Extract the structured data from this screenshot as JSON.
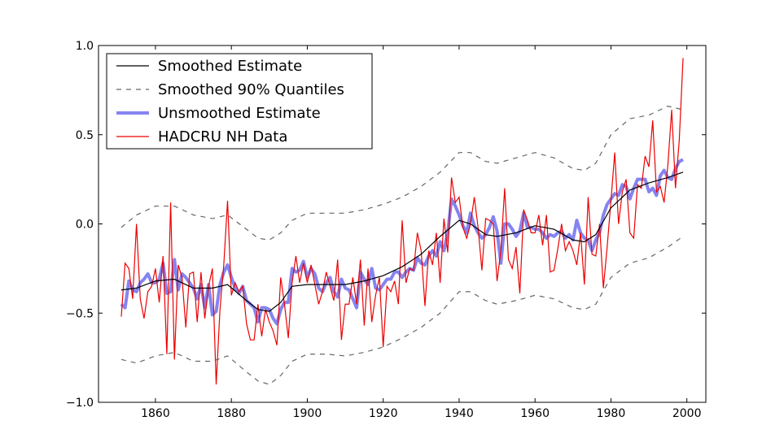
{
  "chart_data": {
    "type": "line",
    "title": "",
    "xlabel": "",
    "ylabel": "",
    "xlim": [
      1845,
      2005
    ],
    "ylim": [
      -1.0,
      1.0
    ],
    "xticks": [
      1860,
      1880,
      1900,
      1920,
      1940,
      1960,
      1980,
      2000
    ],
    "yticks": [
      -1.0,
      -0.5,
      0.0,
      0.5,
      1.0
    ],
    "xtick_labels": [
      "1860",
      "1880",
      "1900",
      "1920",
      "1940",
      "1960",
      "1980",
      "2000"
    ],
    "ytick_labels": [
      "−1.0",
      "−0.5",
      "0.0",
      "0.5",
      "1.0"
    ],
    "grid": false,
    "legend": {
      "position": "top-left",
      "entries": [
        "Smoothed Estimate",
        "Smoothed 90% Quantiles",
        "Unsmoothed Estimate",
        "HADCRU NH Data"
      ]
    },
    "series": [
      {
        "name": "Smoothed Estimate",
        "color": "#000000",
        "style": "solid",
        "x": [
          1851,
          1855,
          1860,
          1865,
          1870,
          1875,
          1879,
          1884,
          1887,
          1890,
          1893,
          1896,
          1900,
          1905,
          1910,
          1915,
          1920,
          1925,
          1930,
          1935,
          1940,
          1943,
          1947,
          1950,
          1955,
          1960,
          1965,
          1970,
          1973,
          1976,
          1980,
          1985,
          1990,
          1995,
          1999
        ],
        "values": [
          -0.37,
          -0.36,
          -0.32,
          -0.31,
          -0.36,
          -0.36,
          -0.34,
          -0.43,
          -0.48,
          -0.49,
          -0.44,
          -0.35,
          -0.34,
          -0.34,
          -0.34,
          -0.32,
          -0.29,
          -0.24,
          -0.17,
          -0.07,
          0.02,
          0.0,
          -0.06,
          -0.07,
          -0.05,
          -0.01,
          -0.03,
          -0.09,
          -0.1,
          -0.06,
          0.09,
          0.19,
          0.23,
          0.26,
          0.29
        ]
      },
      {
        "name": "Smoothed 90% Quantiles",
        "color": "#666666",
        "style": "dashed",
        "x": [
          1851,
          1855,
          1860,
          1865,
          1870,
          1875,
          1879,
          1884,
          1887,
          1890,
          1893,
          1896,
          1900,
          1905,
          1910,
          1915,
          1920,
          1925,
          1930,
          1935,
          1940,
          1943,
          1947,
          1950,
          1955,
          1960,
          1965,
          1970,
          1973,
          1976,
          1980,
          1985,
          1990,
          1995,
          1999
        ],
        "values": [
          -0.02,
          0.05,
          0.1,
          0.1,
          0.05,
          0.03,
          0.05,
          -0.03,
          -0.08,
          -0.09,
          -0.05,
          0.02,
          0.06,
          0.06,
          0.06,
          0.08,
          0.11,
          0.15,
          0.21,
          0.29,
          0.4,
          0.4,
          0.35,
          0.34,
          0.37,
          0.4,
          0.37,
          0.31,
          0.3,
          0.34,
          0.5,
          0.59,
          0.61,
          0.66,
          0.64
        ]
      },
      {
        "name": "",
        "color": "#666666",
        "style": "dashed",
        "x": [
          1851,
          1855,
          1860,
          1865,
          1870,
          1875,
          1879,
          1884,
          1887,
          1890,
          1893,
          1896,
          1900,
          1905,
          1910,
          1915,
          1920,
          1925,
          1930,
          1935,
          1940,
          1943,
          1947,
          1950,
          1955,
          1960,
          1965,
          1970,
          1973,
          1976,
          1980,
          1985,
          1990,
          1995,
          1999
        ],
        "values": [
          -0.76,
          -0.78,
          -0.74,
          -0.72,
          -0.77,
          -0.77,
          -0.74,
          -0.83,
          -0.88,
          -0.9,
          -0.85,
          -0.77,
          -0.73,
          -0.73,
          -0.74,
          -0.72,
          -0.69,
          -0.64,
          -0.58,
          -0.5,
          -0.38,
          -0.38,
          -0.43,
          -0.45,
          -0.43,
          -0.4,
          -0.42,
          -0.47,
          -0.48,
          -0.45,
          -0.3,
          -0.22,
          -0.19,
          -0.13,
          -0.07
        ]
      },
      {
        "name": "Unsmoothed Estimate",
        "color": "#7777ee",
        "style": "thick",
        "x": [
          1851,
          1852,
          1853,
          1854,
          1855,
          1856,
          1857,
          1858,
          1859,
          1860,
          1861,
          1862,
          1863,
          1864,
          1865,
          1866,
          1867,
          1868,
          1869,
          1870,
          1871,
          1872,
          1873,
          1874,
          1875,
          1876,
          1877,
          1878,
          1879,
          1880,
          1881,
          1882,
          1883,
          1884,
          1885,
          1886,
          1887,
          1888,
          1889,
          1890,
          1891,
          1892,
          1893,
          1894,
          1895,
          1896,
          1897,
          1898,
          1899,
          1900,
          1901,
          1902,
          1903,
          1904,
          1905,
          1906,
          1907,
          1908,
          1909,
          1910,
          1911,
          1912,
          1913,
          1914,
          1915,
          1916,
          1917,
          1918,
          1919,
          1920,
          1921,
          1922,
          1923,
          1924,
          1925,
          1926,
          1927,
          1928,
          1929,
          1930,
          1931,
          1932,
          1933,
          1934,
          1935,
          1936,
          1937,
          1938,
          1939,
          1940,
          1941,
          1942,
          1943,
          1944,
          1945,
          1946,
          1947,
          1948,
          1949,
          1950,
          1951,
          1952,
          1953,
          1954,
          1955,
          1956,
          1957,
          1958,
          1959,
          1960,
          1961,
          1962,
          1963,
          1964,
          1965,
          1966,
          1967,
          1968,
          1969,
          1970,
          1971,
          1972,
          1973,
          1974,
          1975,
          1976,
          1977,
          1978,
          1979,
          1980,
          1981,
          1982,
          1983,
          1984,
          1985,
          1986,
          1987,
          1988,
          1989,
          1990,
          1991,
          1992,
          1993,
          1994,
          1995,
          1996,
          1997,
          1998,
          1999
        ],
        "values": [
          -0.45,
          -0.47,
          -0.32,
          -0.37,
          -0.38,
          -0.33,
          -0.31,
          -0.28,
          -0.33,
          -0.33,
          -0.31,
          -0.22,
          -0.39,
          -0.38,
          -0.2,
          -0.37,
          -0.28,
          -0.3,
          -0.33,
          -0.36,
          -0.42,
          -0.34,
          -0.47,
          -0.34,
          -0.51,
          -0.49,
          -0.34,
          -0.27,
          -0.23,
          -0.3,
          -0.36,
          -0.39,
          -0.35,
          -0.43,
          -0.45,
          -0.47,
          -0.55,
          -0.47,
          -0.47,
          -0.48,
          -0.53,
          -0.56,
          -0.48,
          -0.44,
          -0.44,
          -0.25,
          -0.27,
          -0.26,
          -0.21,
          -0.3,
          -0.25,
          -0.28,
          -0.36,
          -0.38,
          -0.33,
          -0.3,
          -0.38,
          -0.41,
          -0.31,
          -0.36,
          -0.37,
          -0.42,
          -0.47,
          -0.27,
          -0.31,
          -0.34,
          -0.25,
          -0.36,
          -0.37,
          -0.34,
          -0.31,
          -0.31,
          -0.27,
          -0.27,
          -0.3,
          -0.27,
          -0.25,
          -0.26,
          -0.19,
          -0.22,
          -0.23,
          -0.18,
          -0.15,
          -0.18,
          -0.1,
          -0.15,
          -0.05,
          0.14,
          0.1,
          0.05,
          -0.01,
          -0.05,
          0.06,
          -0.01,
          -0.05,
          -0.08,
          -0.06,
          -0.02,
          0.04,
          -0.04,
          -0.22,
          0.0,
          0.0,
          -0.03,
          -0.07,
          -0.04,
          0.06,
          -0.02,
          -0.02,
          -0.03,
          -0.03,
          -0.05,
          -0.08,
          -0.06,
          -0.07,
          -0.05,
          -0.04,
          -0.08,
          -0.06,
          -0.09,
          0.02,
          -0.05,
          -0.08,
          -0.09,
          -0.15,
          -0.09,
          -0.05,
          0.05,
          0.11,
          0.14,
          0.17,
          0.16,
          0.22,
          0.21,
          0.14,
          0.2,
          0.25,
          0.25,
          0.25,
          0.18,
          0.2,
          0.16,
          0.27,
          0.3,
          0.26,
          0.25,
          0.31,
          0.35,
          0.36
        ]
      },
      {
        "name": "HADCRU NH Data",
        "color": "#ee0000",
        "style": "solid",
        "x": [
          1851,
          1852,
          1853,
          1854,
          1855,
          1856,
          1857,
          1858,
          1859,
          1860,
          1861,
          1862,
          1863,
          1864,
          1865,
          1866,
          1867,
          1868,
          1869,
          1870,
          1871,
          1872,
          1873,
          1874,
          1875,
          1876,
          1877,
          1878,
          1879,
          1880,
          1881,
          1882,
          1883,
          1884,
          1885,
          1886,
          1887,
          1888,
          1889,
          1890,
          1891,
          1892,
          1893,
          1894,
          1895,
          1896,
          1897,
          1898,
          1899,
          1900,
          1901,
          1902,
          1903,
          1904,
          1905,
          1906,
          1907,
          1908,
          1909,
          1910,
          1911,
          1912,
          1913,
          1914,
          1915,
          1916,
          1917,
          1918,
          1919,
          1920,
          1921,
          1922,
          1923,
          1924,
          1925,
          1926,
          1927,
          1928,
          1929,
          1930,
          1931,
          1932,
          1933,
          1934,
          1935,
          1936,
          1937,
          1938,
          1939,
          1940,
          1941,
          1942,
          1943,
          1944,
          1945,
          1946,
          1947,
          1948,
          1949,
          1950,
          1951,
          1952,
          1953,
          1954,
          1955,
          1956,
          1957,
          1958,
          1959,
          1960,
          1961,
          1962,
          1963,
          1964,
          1965,
          1966,
          1967,
          1968,
          1969,
          1970,
          1971,
          1972,
          1973,
          1974,
          1975,
          1976,
          1977,
          1978,
          1979,
          1980,
          1981,
          1982,
          1983,
          1984,
          1985,
          1986,
          1987,
          1988,
          1989,
          1990,
          1991,
          1992,
          1993,
          1994,
          1995,
          1996,
          1997,
          1998,
          1999
        ],
        "values": [
          -0.52,
          -0.22,
          -0.25,
          -0.42,
          0.0,
          -0.42,
          -0.53,
          -0.38,
          -0.35,
          -0.25,
          -0.44,
          -0.18,
          -0.73,
          0.12,
          -0.76,
          -0.23,
          -0.3,
          -0.58,
          -0.28,
          -0.27,
          -0.55,
          -0.27,
          -0.53,
          -0.35,
          -0.25,
          -0.9,
          -0.48,
          -0.23,
          0.13,
          -0.4,
          -0.33,
          -0.38,
          -0.35,
          -0.56,
          -0.65,
          -0.65,
          -0.45,
          -0.63,
          -0.48,
          -0.55,
          -0.6,
          -0.68,
          -0.3,
          -0.45,
          -0.64,
          -0.33,
          -0.18,
          -0.33,
          -0.22,
          -0.33,
          -0.23,
          -0.34,
          -0.45,
          -0.38,
          -0.27,
          -0.35,
          -0.43,
          -0.2,
          -0.65,
          -0.45,
          -0.45,
          -0.3,
          -0.45,
          -0.2,
          -0.57,
          -0.25,
          -0.55,
          -0.4,
          -0.3,
          -0.69,
          -0.35,
          -0.38,
          -0.32,
          -0.45,
          0.02,
          -0.33,
          -0.25,
          -0.26,
          -0.05,
          -0.15,
          -0.46,
          -0.15,
          -0.23,
          -0.05,
          -0.33,
          0.03,
          -0.16,
          0.26,
          0.12,
          0.15,
          -0.02,
          -0.08,
          0.0,
          0.15,
          -0.02,
          -0.26,
          0.03,
          0.02,
          0.0,
          -0.32,
          -0.15,
          0.2,
          -0.2,
          -0.25,
          -0.13,
          -0.39,
          0.08,
          0.02,
          -0.05,
          -0.05,
          0.05,
          -0.12,
          0.05,
          -0.27,
          -0.26,
          -0.14,
          0.0,
          -0.15,
          -0.1,
          -0.15,
          -0.23,
          -0.05,
          -0.34,
          0.15,
          -0.17,
          -0.18,
          0.0,
          -0.36,
          -0.13,
          0.13,
          0.4,
          0.0,
          0.18,
          0.25,
          -0.05,
          -0.08,
          0.22,
          0.2,
          0.38,
          0.32,
          0.58,
          0.18,
          0.21,
          0.12,
          0.33,
          0.64,
          0.2,
          0.47,
          0.93
        ]
      }
    ]
  }
}
